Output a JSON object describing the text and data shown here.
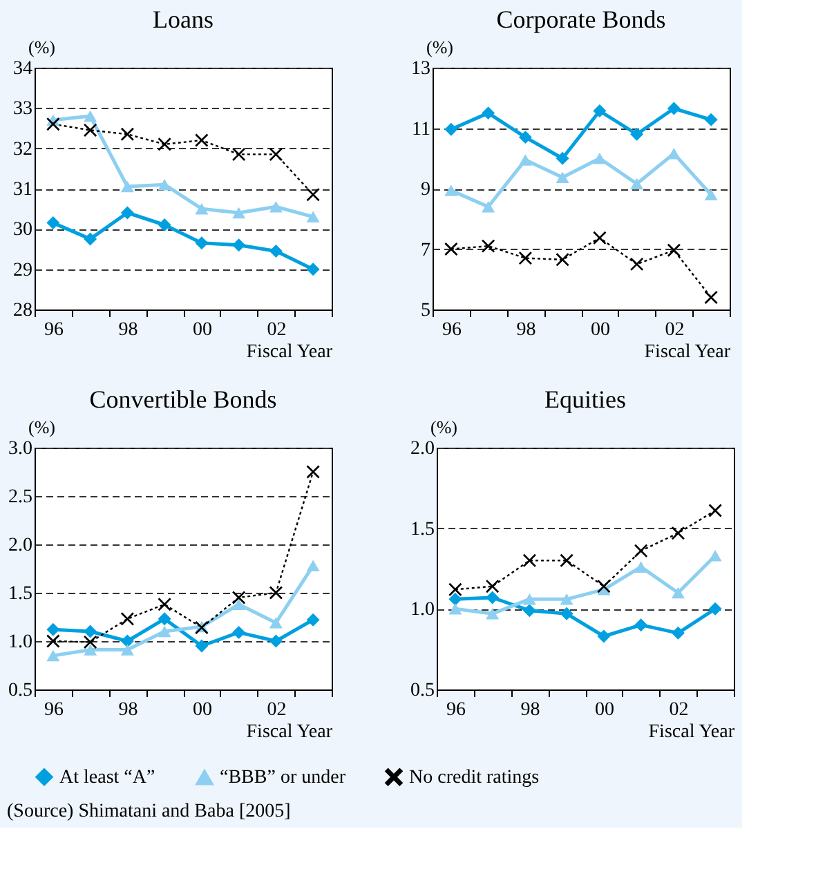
{
  "chart_data": [
    {
      "type": "line",
      "title": "Loans",
      "ylabel": "(%)",
      "xlabel": "Fiscal Year",
      "categories": [
        "96",
        null,
        "98",
        null,
        "00",
        null,
        "02",
        null
      ],
      "ylim": [
        28,
        34
      ],
      "yticks": [
        28,
        29,
        30,
        31,
        32,
        33,
        34
      ],
      "grid": "y",
      "legend": "bottom",
      "series": [
        {
          "name": "At least “A”",
          "color": "#00a0e0",
          "marker": "diamond",
          "line_style": "solid",
          "values": [
            30.15,
            29.75,
            30.4,
            30.1,
            29.65,
            29.6,
            29.45,
            29.0
          ]
        },
        {
          "name": "“BBB” or under",
          "color": "#8dcff0",
          "marker": "triangle",
          "line_style": "solid",
          "values": [
            32.7,
            32.8,
            31.05,
            31.1,
            30.5,
            30.4,
            30.55,
            30.3
          ]
        },
        {
          "name": "No credit ratings",
          "color": "#000000",
          "marker": "cross",
          "line_style": "dotted",
          "values": [
            32.6,
            32.45,
            32.35,
            32.1,
            32.2,
            31.85,
            31.85,
            30.85
          ]
        }
      ]
    },
    {
      "type": "line",
      "title": "Corporate Bonds",
      "ylabel": "(%)",
      "xlabel": "Fiscal Year",
      "categories": [
        "96",
        null,
        "98",
        null,
        "00",
        null,
        "02",
        null
      ],
      "ylim": [
        5,
        13
      ],
      "yticks": [
        5,
        7,
        9,
        11,
        13
      ],
      "grid": "y",
      "legend": "bottom",
      "series": [
        {
          "name": "At least “A”",
          "color": "#00a0e0",
          "marker": "diamond",
          "line_style": "solid",
          "values": [
            10.96,
            11.5,
            10.7,
            10.0,
            11.57,
            10.8,
            11.65,
            11.28
          ]
        },
        {
          "name": "“BBB” or under",
          "color": "#8dcff0",
          "marker": "triangle",
          "line_style": "solid",
          "values": [
            8.94,
            8.4,
            9.95,
            9.37,
            10.0,
            9.16,
            10.16,
            8.8
          ]
        },
        {
          "name": "No credit ratings",
          "color": "#000000",
          "marker": "cross",
          "line_style": "dotted",
          "values": [
            7.0,
            7.1,
            6.7,
            6.65,
            7.37,
            6.5,
            6.96,
            5.4
          ]
        }
      ]
    },
    {
      "type": "line",
      "title": "Convertible Bonds",
      "ylabel": "(%)",
      "xlabel": "Fiscal Year",
      "categories": [
        "96",
        null,
        "98",
        null,
        "00",
        null,
        "02",
        null
      ],
      "ylim": [
        0.5,
        3.0
      ],
      "yticks": [
        {
          "value": 0.5,
          "label": "0.5"
        },
        {
          "value": 1,
          "label": "1.0"
        },
        {
          "value": 1.5,
          "label": "1.5"
        },
        {
          "value": 2,
          "label": "2.0"
        },
        {
          "value": 2.5,
          "label": "2.5"
        },
        {
          "value": 3,
          "label": "3.0"
        }
      ],
      "grid": "y",
      "legend": "bottom",
      "series": [
        {
          "name": "At least “A”",
          "color": "#00a0e0",
          "marker": "diamond",
          "line_style": "solid",
          "values": [
            1.12,
            1.1,
            1.0,
            1.23,
            0.95,
            1.09,
            1.0,
            1.22
          ]
        },
        {
          "name": "“BBB” or under",
          "color": "#8dcff0",
          "marker": "triangle",
          "line_style": "solid",
          "values": [
            0.85,
            0.91,
            0.91,
            1.1,
            1.15,
            1.38,
            1.19,
            1.78
          ]
        },
        {
          "name": "No credit ratings",
          "color": "#000000",
          "marker": "cross",
          "line_style": "dotted",
          "values": [
            1.0,
            0.99,
            1.23,
            1.38,
            1.14,
            1.45,
            1.5,
            2.75
          ]
        }
      ]
    },
    {
      "type": "line",
      "title": "Equities",
      "ylabel": "(%)",
      "xlabel": "Fiscal Year",
      "categories": [
        "96",
        null,
        "98",
        null,
        "00",
        null,
        "02",
        null
      ],
      "ylim": [
        0.5,
        2.0
      ],
      "yticks": [
        {
          "value": 0.5,
          "label": "0.5"
        },
        {
          "value": 1,
          "label": "1.0"
        },
        {
          "value": 1.5,
          "label": "1.5"
        },
        {
          "value": 2,
          "label": "2.0"
        }
      ],
      "grid": "y",
      "legend": "bottom",
      "annotations": [
        "(Source) Shimatani and Baba [2005]"
      ],
      "series": [
        {
          "name": "At least “A”",
          "color": "#00a0e0",
          "marker": "diamond",
          "line_style": "solid",
          "values": [
            1.06,
            1.07,
            0.99,
            0.97,
            0.83,
            0.9,
            0.85,
            1.0
          ]
        },
        {
          "name": "“BBB” or under",
          "color": "#8dcff0",
          "marker": "triangle",
          "line_style": "solid",
          "values": [
            1.0,
            0.97,
            1.06,
            1.06,
            1.12,
            1.26,
            1.1,
            1.33
          ]
        },
        {
          "name": "No credit ratings",
          "color": "#000000",
          "marker": "cross",
          "line_style": "dotted",
          "values": [
            1.12,
            1.14,
            1.3,
            1.3,
            1.14,
            1.36,
            1.47,
            1.61
          ]
        }
      ]
    }
  ]
}
